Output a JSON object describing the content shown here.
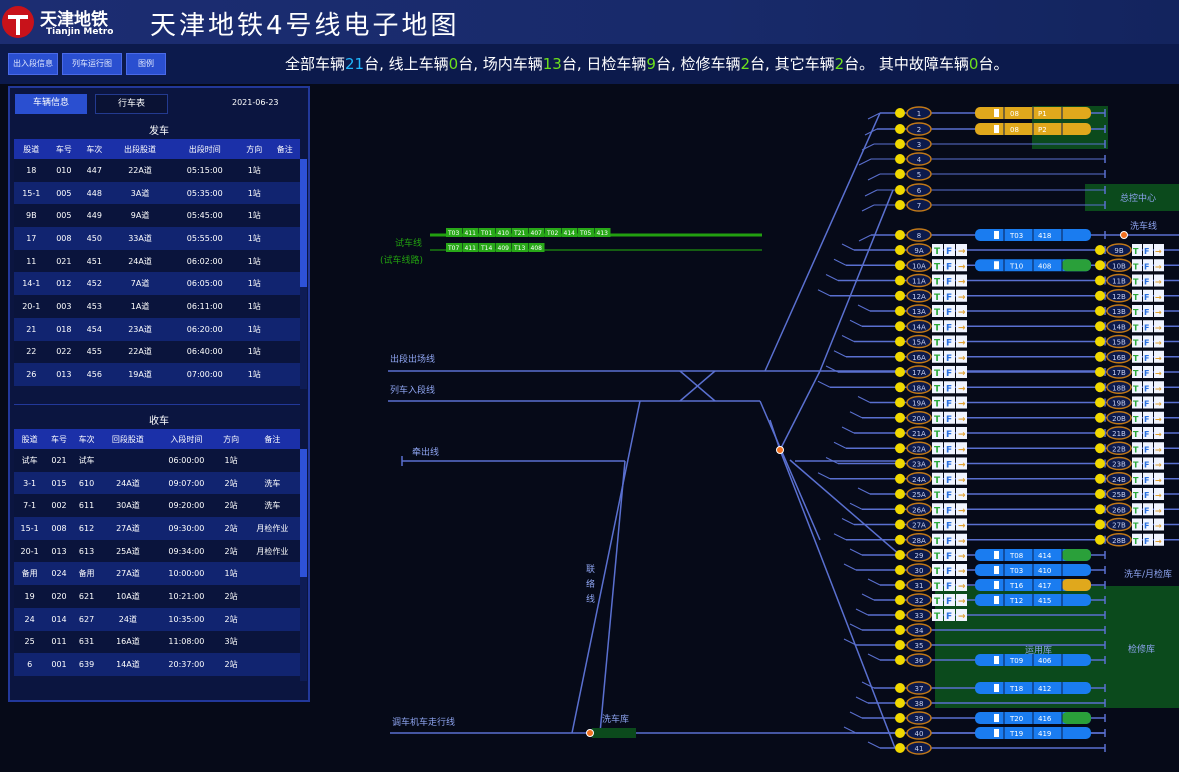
{
  "header": {
    "logo_cn": "天津地铁",
    "logo_en": "Tianjin Metro",
    "title": "天津地铁4号线电子地图"
  },
  "toolbar": {
    "buttons": [
      "出入段信息",
      "列车运行图",
      "图例"
    ]
  },
  "status": {
    "parts": [
      "全部车辆",
      "21",
      "台, 线上车辆",
      "0",
      "台, 场内车辆",
      "13",
      "台, 日检车辆",
      "9",
      "台, 检修车辆",
      "2",
      "台, 其它车辆",
      "2",
      "台。 其中故障车辆",
      "0",
      "台。"
    ]
  },
  "panel": {
    "tabs": [
      "车辆信息",
      "行车表"
    ],
    "date": "2021-06-23",
    "depart": {
      "title": "发车",
      "headers": [
        "股道",
        "车号",
        "车次",
        "出段股道",
        "出段时间",
        "方向",
        "备注"
      ],
      "rows": [
        [
          "18",
          "010",
          "447",
          "22A道",
          "05:15:00",
          "1站",
          ""
        ],
        [
          "15-1",
          "005",
          "448",
          "3A道",
          "05:35:00",
          "1站",
          ""
        ],
        [
          "9B",
          "005",
          "449",
          "9A道",
          "05:45:00",
          "1站",
          ""
        ],
        [
          "17",
          "008",
          "450",
          "33A道",
          "05:55:00",
          "1站",
          ""
        ],
        [
          "11",
          "021",
          "451",
          "24A道",
          "06:02:00",
          "1站",
          ""
        ],
        [
          "14-1",
          "012",
          "452",
          "7A道",
          "06:05:00",
          "1站",
          ""
        ],
        [
          "20-1",
          "003",
          "453",
          "1A道",
          "06:11:00",
          "1站",
          ""
        ],
        [
          "21",
          "018",
          "454",
          "23A道",
          "06:20:00",
          "1站",
          ""
        ],
        [
          "22",
          "022",
          "455",
          "22A道",
          "06:40:00",
          "1站",
          ""
        ],
        [
          "26",
          "013",
          "456",
          "19A道",
          "07:00:00",
          "1站",
          ""
        ]
      ]
    },
    "arrive": {
      "title": "收车",
      "headers": [
        "股道",
        "车号",
        "车次",
        "回段股道",
        "入段时间",
        "方向",
        "备注"
      ],
      "rows": [
        [
          "试车",
          "021",
          "试车",
          "",
          "06:00:00",
          "1站",
          ""
        ],
        [
          "3-1",
          "015",
          "610",
          "24A道",
          "09:07:00",
          "2站",
          "洗车"
        ],
        [
          "7-1",
          "002",
          "611",
          "30A道",
          "09:20:00",
          "2站",
          "洗车"
        ],
        [
          "15-1",
          "008",
          "612",
          "27A道",
          "09:30:00",
          "2站",
          "月检作业"
        ],
        [
          "20-1",
          "013",
          "613",
          "25A道",
          "09:34:00",
          "2站",
          "月检作业"
        ],
        [
          "备用",
          "024",
          "备用",
          "27A道",
          "10:00:00",
          "1站",
          ""
        ],
        [
          "19",
          "020",
          "621",
          "10A道",
          "10:21:00",
          "2站",
          ""
        ],
        [
          "24",
          "014",
          "627",
          "24道",
          "10:35:00",
          "2站",
          ""
        ],
        [
          "25",
          "011",
          "631",
          "16A道",
          "11:08:00",
          "3站",
          ""
        ],
        [
          "6",
          "001",
          "639",
          "14A道",
          "20:37:00",
          "2站",
          ""
        ]
      ]
    }
  },
  "map": {
    "labels": {
      "test_line": "试车线",
      "test_line_sub": "(试车线路)",
      "out_line": "出段出场线",
      "in_line": "列车入段线",
      "pull_line": "牵出线",
      "link_line": [
        "联",
        "络",
        "线"
      ],
      "loco_line": "调车机车走行线",
      "wash": "洗车库",
      "wash_track": "洗车线",
      "control": "总控中心",
      "monthly": "洗车/月检库",
      "stabling": "运用库",
      "repair": "检修库"
    },
    "test_trains": [
      [
        "T03",
        "411",
        "T01",
        "410",
        "T21",
        "407",
        "T02",
        "414",
        "T05",
        "413"
      ],
      [
        "T07",
        "411",
        "T14",
        "409",
        "T13",
        "408"
      ]
    ],
    "tracks_top": [
      "1",
      "2",
      "3",
      "4",
      "5",
      "6",
      "7"
    ],
    "main_track": "8",
    "tracks_mid": [
      "9A",
      "10A",
      "11A",
      "12A",
      "13A",
      "14A",
      "15A",
      "16A",
      "17A",
      "18A",
      "19A",
      "20A",
      "21A",
      "22A",
      "23A",
      "24A",
      "25A",
      "26A",
      "27A",
      "28A"
    ],
    "tracks_mid_right": [
      "9B",
      "10B",
      "11B",
      "12B",
      "13B",
      "14B",
      "15B",
      "16B",
      "17B",
      "18B",
      "19B",
      "20B",
      "21B",
      "22B",
      "23B",
      "24B",
      "25B",
      "26B",
      "27B",
      "28B"
    ],
    "tracks_low": [
      "29",
      "30",
      "31",
      "32",
      "33",
      "34",
      "35",
      "36",
      "37",
      "38",
      "39",
      "40",
      "41"
    ],
    "trains": [
      {
        "row": 0,
        "color": "#e0a81c",
        "ids": [
          "08",
          "P1"
        ]
      },
      {
        "row": 1,
        "color": "#e0a81c",
        "ids": [
          "08",
          "P2"
        ]
      },
      {
        "row": 7,
        "color": "#1a7cf0",
        "ids": [
          "T03",
          "418"
        ]
      },
      {
        "row": 9,
        "color": "#1a7cf0",
        "ids": [
          "T10",
          "408"
        ],
        "tail": "#2aa03a"
      },
      {
        "row": 28,
        "color": "#1a7cf0",
        "ids": [
          "T08",
          "414"
        ],
        "tail": "#2aa03a"
      },
      {
        "row": 29,
        "color": "#1a7cf0",
        "ids": [
          "T03",
          "410"
        ]
      },
      {
        "row": 30,
        "color": "#1a7cf0",
        "ids": [
          "T16",
          "417"
        ],
        "tail": "#e0a81c"
      },
      {
        "row": 31,
        "color": "#1a7cf0",
        "ids": [
          "T12",
          "415"
        ]
      },
      {
        "row": 35,
        "color": "#1a7cf0",
        "ids": [
          "T09",
          "406"
        ]
      },
      {
        "row": 36,
        "color": "#1a7cf0",
        "ids": [
          "T18",
          "412"
        ]
      },
      {
        "row": 38,
        "color": "#1a7cf0",
        "ids": [
          "T20",
          "416"
        ],
        "tail": "#2aa03a"
      },
      {
        "row": 39,
        "color": "#1a7cf0",
        "ids": [
          "T19",
          "419"
        ]
      }
    ]
  },
  "colors": {
    "track": "#5a70d0",
    "signal": "#f0d800",
    "zone": "#0b4a1c",
    "test": "#22a010",
    "accent": "#20b8ff",
    "ok": "#6ce01c"
  }
}
